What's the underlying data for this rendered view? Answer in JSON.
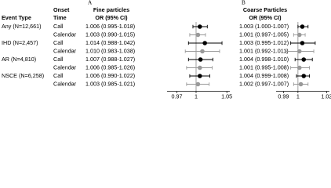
{
  "table": {
    "header_event": "Event Type",
    "header_onset": [
      "Onset",
      "Time"
    ],
    "event_types": [
      "Any (N=12,661)",
      "IHD (N=2,457)",
      "AR (N=4,810)",
      "NSCE (N=6,258)"
    ],
    "onset_times": [
      "Call",
      "Calendar",
      "Call",
      "Calendar",
      "Call",
      "Calendar",
      "Call",
      "Calendar"
    ]
  },
  "chart_data": [
    {
      "type": "forest",
      "panel": "A",
      "title": "Fine particles",
      "column_header": "OR (95% CI)",
      "values": [
        1.006,
        1.003,
        1.014,
        1.01,
        1.007,
        1.006,
        1.006,
        1.003
      ],
      "lower": [
        0.995,
        0.99,
        0.988,
        0.983,
        0.988,
        0.985,
        0.99,
        0.985
      ],
      "upper": [
        1.018,
        1.015,
        1.042,
        1.038,
        1.027,
        1.026,
        1.022,
        1.021
      ],
      "value_labels": [
        "1.006 (0.995-1.018)",
        "1.003 (0.990-1.015)",
        "1.014 (0.988-1.042)",
        "1.010 (0.983-1.038)",
        "1.007 (0.988-1.027)",
        "1.006 (0.985-1.026)",
        "1.006 (0.990-1.022)",
        "1.003 (0.985-1.021)"
      ],
      "colors": [
        "#000000",
        "#999999",
        "#000000",
        "#999999",
        "#000000",
        "#999999",
        "#000000",
        "#999999"
      ],
      "xlim": [
        0.955,
        1.055
      ],
      "xticks": [
        0.97,
        1,
        1.05
      ],
      "log_x": true,
      "refline": 1
    },
    {
      "type": "forest",
      "panel": "B",
      "title": "Coarse Particles",
      "column_header": "OR (95% CI)",
      "values": [
        1.003,
        1.001,
        1.003,
        1.001,
        1.004,
        1.001,
        1.004,
        1.002
      ],
      "lower": [
        1.0,
        0.997,
        0.995,
        0.992,
        0.998,
        0.995,
        0.999,
        0.997
      ],
      "upper": [
        1.007,
        1.005,
        1.012,
        1.011,
        1.01,
        1.008,
        1.008,
        1.007
      ],
      "value_labels": [
        "1.003 (1.000-1.007)",
        "1.001 (0.997-1.005)",
        "1.003 (0.995-1.012)",
        "1.001 (0.992-1.011)",
        "1.004 (0.998-1.010)",
        "1.001 (0.995-1.008)",
        "1.004 (0.999-1.008)",
        "1.002 (0.997-1.007)"
      ],
      "colors": [
        "#000000",
        "#999999",
        "#000000",
        "#999999",
        "#000000",
        "#999999",
        "#000000",
        "#999999"
      ],
      "xlim": [
        0.985,
        1.022
      ],
      "xticks": [
        0.99,
        1,
        1.02
      ],
      "log_x": true,
      "refline": 1
    }
  ]
}
